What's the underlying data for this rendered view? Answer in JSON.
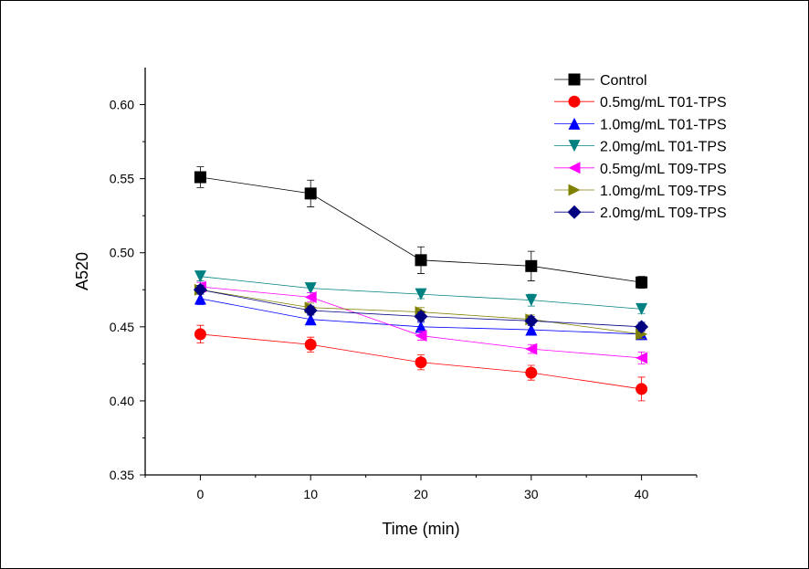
{
  "chart_data": {
    "type": "line",
    "title": "",
    "xlabel": "Time (min)",
    "ylabel": "A520",
    "xlim": [
      -5,
      45
    ],
    "ylim": [
      0.35,
      0.625
    ],
    "xticks": [
      0,
      10,
      20,
      30,
      40
    ],
    "yticks": [
      0.35,
      0.4,
      0.45,
      0.5,
      0.55,
      0.6
    ],
    "ytick_labels": [
      "0.35",
      "0.40",
      "0.45",
      "0.50",
      "0.55",
      "0.60"
    ],
    "xtick_labels": [
      "0",
      "10",
      "20",
      "30",
      "40"
    ],
    "legend_position": "top-right",
    "x": [
      0,
      10,
      20,
      30,
      40
    ],
    "series": [
      {
        "name": "Control",
        "color": "#000000",
        "marker": "square",
        "values": [
          0.551,
          0.54,
          0.495,
          0.491,
          0.48
        ],
        "errors": [
          0.007,
          0.009,
          0.009,
          0.01,
          0.004
        ]
      },
      {
        "name": "0.5mg/mL T01-TPS",
        "color": "#ff0000",
        "marker": "circle",
        "values": [
          0.445,
          0.438,
          0.426,
          0.419,
          0.408
        ],
        "errors": [
          0.006,
          0.005,
          0.005,
          0.005,
          0.008
        ]
      },
      {
        "name": "1.0mg/mL T01-TPS",
        "color": "#0000ff",
        "marker": "triangle-up",
        "values": [
          0.469,
          0.455,
          0.45,
          0.448,
          0.445
        ],
        "errors": [
          0.004,
          0.003,
          0.003,
          0.003,
          0.003
        ]
      },
      {
        "name": "2.0mg/mL T01-TPS",
        "color": "#008080",
        "marker": "triangle-down",
        "values": [
          0.484,
          0.476,
          0.472,
          0.468,
          0.462
        ],
        "errors": [
          0.003,
          0.003,
          0.003,
          0.004,
          0.003
        ]
      },
      {
        "name": "0.5mg/mL T09-TPS",
        "color": "#ff00ff",
        "marker": "triangle-left",
        "values": [
          0.477,
          0.47,
          0.444,
          0.435,
          0.429
        ],
        "errors": [
          0.003,
          0.003,
          0.003,
          0.003,
          0.004
        ]
      },
      {
        "name": "1.0mg/mL T09-TPS",
        "color": "#808000",
        "marker": "triangle-right",
        "values": [
          0.475,
          0.463,
          0.46,
          0.455,
          0.445
        ],
        "errors": [
          0.003,
          0.003,
          0.003,
          0.003,
          0.003
        ]
      },
      {
        "name": "2.0mg/mL T09-TPS",
        "color": "#000080",
        "marker": "diamond",
        "values": [
          0.475,
          0.461,
          0.457,
          0.454,
          0.45
        ],
        "errors": [
          0.003,
          0.003,
          0.003,
          0.003,
          0.003
        ]
      }
    ]
  }
}
